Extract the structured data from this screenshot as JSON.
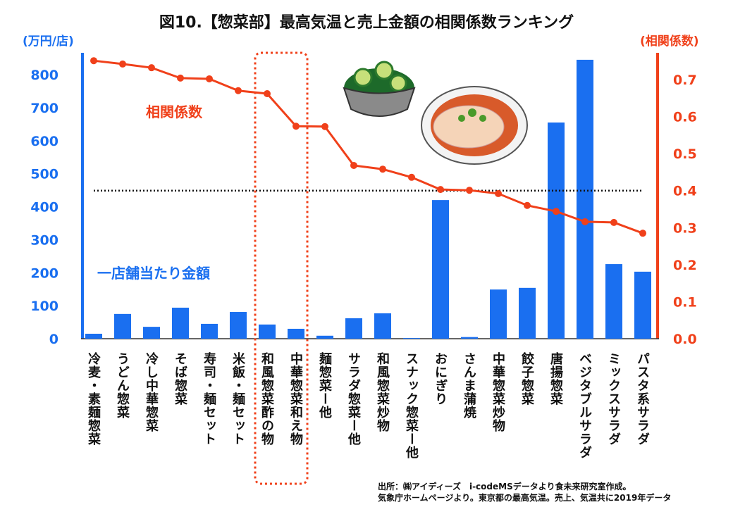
{
  "title": "図10.【惣菜部】最高気温と売上金額の相関係数ランキング",
  "left_unit": "(万円/店)",
  "right_unit": "(相関係数)",
  "line_label": "相関係数",
  "bar_label": "一店舗当たり金額",
  "source_line1": "出所：㈱アイディーズ　i-codeMSデータより食未来研究室作成。",
  "source_line2": "気象庁ホームページより。東京都の最高気温。売上、気温共に2019年データ",
  "colors": {
    "bar": "#1a6ff0",
    "line": "#f0401a",
    "left_axis": "#1a6ff0",
    "right_axis": "#f0401a",
    "highlight": "#f0401a"
  },
  "chart_data": {
    "type": "bar+line",
    "title": "図10.【惣菜部】最高気温と売上金額の相関係数ランキング",
    "categories": [
      "冷麦・素麺惣菜",
      "うどん惣菜",
      "冷し中華惣菜",
      "そば惣菜",
      "寿司・麺セット",
      "米飯・麺セット",
      "和風惣菜酢の物",
      "中華惣菜和え物",
      "麺惣菜ー他",
      "サラダ惣菜ー他",
      "和風惣菜炒物",
      "スナック惣菜ー他",
      "おにぎり",
      "さんま蒲焼",
      "中華惣菜炒物",
      "餃子惣菜",
      "唐揚惣菜",
      "ベジタブルサラダ",
      "ミックスサラダ",
      "パスタ系サラダ"
    ],
    "series": [
      {
        "name": "一店舗当たり金額",
        "type": "bar",
        "axis": "left",
        "values": [
          15,
          75,
          36,
          94,
          45,
          81,
          43,
          30,
          9,
          62,
          77,
          2,
          420,
          5,
          149,
          154,
          655,
          845,
          226,
          203
        ]
      },
      {
        "name": "相関係数",
        "type": "line",
        "axis": "right",
        "values": [
          0.751,
          0.742,
          0.732,
          0.704,
          0.702,
          0.67,
          0.662,
          0.574,
          0.573,
          0.468,
          0.458,
          0.436,
          0.403,
          0.401,
          0.392,
          0.36,
          0.344,
          0.316,
          0.314,
          0.285
        ]
      }
    ],
    "ylim_left": [
      0,
      850
    ],
    "yticks_left": [
      "0",
      "100",
      "200",
      "300",
      "400",
      "500",
      "600",
      "700",
      "800"
    ],
    "ylim_right": [
      0,
      0.76
    ],
    "yticks_right": [
      "0.0",
      "0.1",
      "0.2",
      "0.3",
      "0.4",
      "0.5",
      "0.6",
      "0.7"
    ],
    "reference_line": 0.4,
    "highlighted_categories": [
      "和風惣菜酢の物",
      "中華惣菜和え物"
    ],
    "grid": false
  }
}
